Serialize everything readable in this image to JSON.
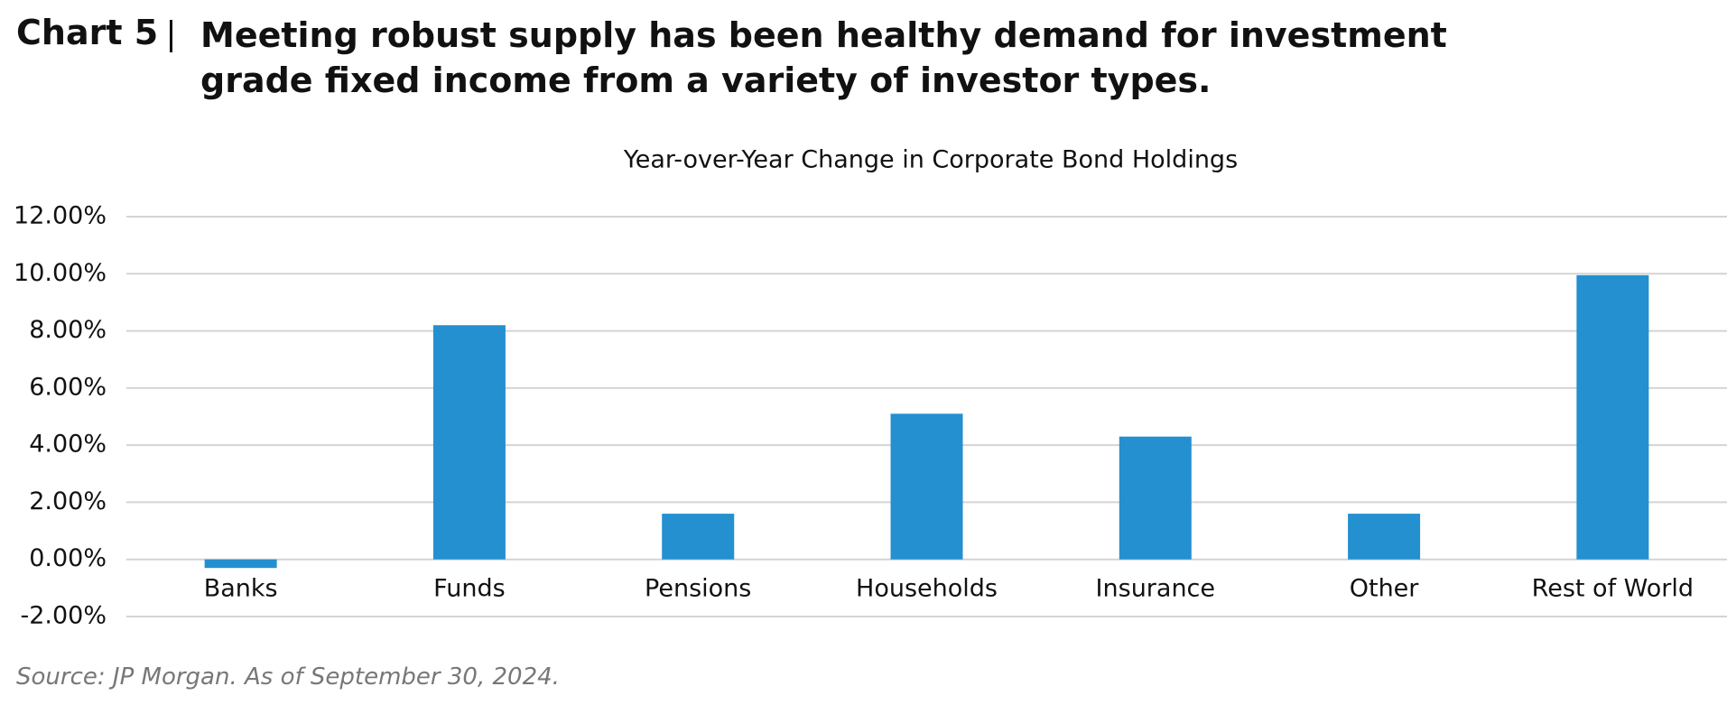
{
  "header": {
    "label": "Chart 5",
    "title": "Meeting robust supply has been healthy demand for investment grade fixed income from a variety of investor types."
  },
  "chart_data": {
    "type": "bar",
    "title": "Year-over-Year Change in Corporate Bond Holdings",
    "categories": [
      "Banks",
      "Funds",
      "Pensions",
      "Households",
      "Insurance",
      "Other",
      "Rest of World"
    ],
    "values": [
      -0.3,
      8.2,
      1.6,
      5.1,
      4.3,
      1.6,
      9.95
    ],
    "color": "#2490d0",
    "ylim": [
      -2,
      12
    ],
    "yticks": [
      {
        "value": -2,
        "label": "-2.00%"
      },
      {
        "value": 0,
        "label": "0.00%"
      },
      {
        "value": 2,
        "label": "2.00%"
      },
      {
        "value": 4,
        "label": "4.00%"
      },
      {
        "value": 6,
        "label": "6.00%"
      },
      {
        "value": 8,
        "label": "8.00%"
      },
      {
        "value": 10,
        "label": "10.00%"
      },
      {
        "value": 12,
        "label": "12.00%"
      }
    ],
    "grid": true
  },
  "source": "Source: JP Morgan. As of September 30, 2024."
}
